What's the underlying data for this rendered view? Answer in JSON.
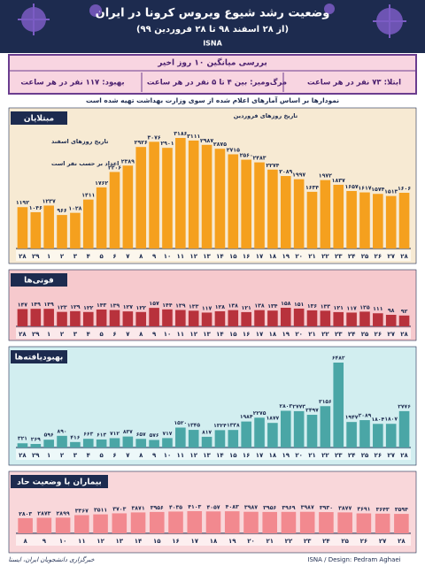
{
  "header": {
    "title": "وضعیت رشد شیوع ویروس کرونا در ایران",
    "subtitle": "(از ۲۸ اسفند ۹۸ تا ۲۸ فروردین ۹۹)",
    "brand": "ISNA"
  },
  "summary": {
    "title": "بررسی میانگین ۱۰ روز اخیر",
    "infection": "ابتلا: ۷۳ نفر در هر ساعت",
    "death": "مرگ‌ومیر: بین ۴ تا ۵ نفر در هر ساعت",
    "recovery": "بهبود: ۱۱۷ نفر در هر ساعت"
  },
  "note": "نمودارها بر اساس آمارهای اعلام شده از سوی وزارت بهداشت تهیه شده است",
  "chart_data": [
    {
      "type": "bar",
      "title": "مبتلایان",
      "annotations": [
        "تاریخ روزهای فروردین",
        "تاریخ روزهای اسفند",
        "اعداد بر حسب نفر است"
      ],
      "color": "#f5a01e",
      "categories": [
        "۲۸",
        "۲۹",
        "۱",
        "۲",
        "۳",
        "۴",
        "۵",
        "۶",
        "۷",
        "۸",
        "۹",
        "۱۰",
        "۱۱",
        "۱۲",
        "۱۳",
        "۱۴",
        "۱۵",
        "۱۶",
        "۱۷",
        "۱۸",
        "۱۹",
        "۲۰",
        "۲۱",
        "۲۲",
        "۲۳",
        "۲۴",
        "۲۵",
        "۲۶",
        "۲۷",
        "۲۸"
      ],
      "values": [
        1192,
        1046,
        1237,
        966,
        1028,
        1411,
        1762,
        2206,
        2389,
        2926,
        3076,
        2901,
        3186,
        3111,
        2987,
        2875,
        2715,
        2560,
        2483,
        2274,
        2089,
        1997,
        1634,
        1972,
        1837,
        1657,
        1617,
        1574,
        1513,
        1606
      ],
      "value_labels": [
        "۱۱۹۲",
        "۱۰۴۶",
        "۱۲۳۷",
        "۹۶۶",
        "۱۰۲۸",
        "۱۴۱۱",
        "۱۷۶۲",
        "۲۲۰۶",
        "۲۳۸۹",
        "۲۹۲۶",
        "۳۰۷۶",
        "۲۹۰۱",
        "۳۱۸۶",
        "۳۱۱۱",
        "۲۹۸۷",
        "۲۸۷۵",
        "۲۷۱۵",
        "۲۵۶۰",
        "۲۴۸۳",
        "۲۲۷۴",
        "۲۰۸۹",
        "۱۹۹۷",
        "۱۶۳۴",
        "۱۹۷۲",
        "۱۸۳۷",
        "۱۶۵۷",
        "۱۶۱۷",
        "۱۵۷۴",
        "۱۵۱۳",
        "۱۶۰۶"
      ]
    },
    {
      "type": "bar",
      "title": "فوتی‌ها",
      "color": "#b8323c",
      "categories": [
        "۲۸",
        "۲۹",
        "۱",
        "۲",
        "۳",
        "۴",
        "۵",
        "۶",
        "۷",
        "۸",
        "۹",
        "۱۰",
        "۱۱",
        "۱۲",
        "۱۳",
        "۱۴",
        "۱۵",
        "۱۶",
        "۱۷",
        "۱۸",
        "۱۹",
        "۲۰",
        "۲۱",
        "۲۲",
        "۲۳",
        "۲۴",
        "۲۵",
        "۲۶",
        "۲۷",
        "۲۸"
      ],
      "values": [
        147,
        149,
        149,
        123,
        129,
        122,
        143,
        139,
        127,
        122,
        157,
        144,
        139,
        133,
        117,
        128,
        138,
        121,
        138,
        134,
        158,
        151,
        136,
        133,
        121,
        117,
        125,
        111,
        98,
        92
      ],
      "value_labels": [
        "۱۴۷",
        "۱۴۹",
        "۱۴۹",
        "۱۲۳",
        "۱۲۹",
        "۱۲۲",
        "۱۴۳",
        "۱۳۹",
        "۱۲۷",
        "۱۲۲",
        "۱۵۷",
        "۱۴۴",
        "۱۳۹",
        "۱۳۳",
        "۱۱۷",
        "۱۲۸",
        "۱۳۸",
        "۱۲۱",
        "۱۳۸",
        "۱۳۴",
        "۱۵۸",
        "۱۵۱",
        "۱۳۶",
        "۱۳۳",
        "۱۲۱",
        "۱۱۷",
        "۱۲۵",
        "۱۱۱",
        "۹۸",
        "۹۲"
      ]
    },
    {
      "type": "bar",
      "title": "بهبودیافته‌ها",
      "color": "#4aa6a6",
      "categories": [
        "۲۸",
        "۲۹",
        "۱",
        "۲",
        "۳",
        "۴",
        "۵",
        "۶",
        "۷",
        "۸",
        "۹",
        "۱۰",
        "۱۱",
        "۱۲",
        "۱۳",
        "۱۴",
        "۱۵",
        "۱۶",
        "۱۷",
        "۱۸",
        "۱۹",
        "۲۰",
        "۲۱",
        "۲۲",
        "۲۳",
        "۲۴",
        "۲۵",
        "۲۶",
        "۲۷",
        "۲۸"
      ],
      "values": [
        321,
        269,
        596,
        890,
        416,
        663,
        613,
        712,
        837,
        657,
        576,
        717,
        1520,
        1345,
        817,
        1324,
        1338,
        1984,
        2275,
        1877,
        2803,
        2773,
        2497,
        3156,
        6482,
        1947,
        2089,
        1804,
        1807,
        2776
      ],
      "value_labels": [
        "۳۲۱",
        "۲۶۹",
        "۵۹۶",
        "۸۹۰",
        "۴۱۶",
        "۶۶۳",
        "۶۱۳",
        "۷۱۲",
        "۸۳۷",
        "۶۵۷",
        "۵۷۶",
        "۷۱۷",
        "۱۵۲۰",
        "۱۳۴۵",
        "۸۱۷",
        "۱۳۲۴",
        "۱۳۳۸",
        "۱۹۸۴",
        "۲۲۷۵",
        "۱۸۷۷",
        "۲۸۰۳",
        "۲۷۷۳",
        "۲۴۹۷",
        "۳۱۵۶",
        "۶۴۸۲",
        "۱۹۴۷",
        "۲۰۸۹",
        "۱۸۰۴",
        "۱۸۰۷",
        "۲۷۷۶"
      ]
    },
    {
      "type": "bar",
      "title": "بیماران با وضعیت حاد",
      "color": "#f2898f",
      "categories": [
        "۸",
        "۹",
        "۱۰",
        "۱۱",
        "۱۲",
        "۱۳",
        "۱۴",
        "۱۵",
        "۱۶",
        "۱۷",
        "۱۸",
        "۱۹",
        "۲۰",
        "۲۱",
        "۲۲",
        "۲۳",
        "۲۴",
        "۲۵",
        "۲۶",
        "۲۷",
        "۲۸"
      ],
      "values": [
        2803,
        2873,
        2899,
        3367,
        3511,
        3703,
        3871,
        3956,
        4035,
        4103,
        4057,
        4083,
        3987,
        3956,
        3969,
        3987,
        3930,
        3877,
        3691,
        3643,
        3594
      ],
      "value_labels": [
        "۲۸۰۳",
        "۲۸۷۳",
        "۲۸۹۹",
        "۳۳۶۷",
        "۳۵۱۱",
        "۳۷۰۳",
        "۳۸۷۱",
        "۳۹۵۶",
        "۴۰۳۵",
        "۴۱۰۳",
        "۴۰۵۷",
        "۴۰۸۳",
        "۳۹۸۷",
        "۳۹۵۶",
        "۳۹۶۹",
        "۳۹۸۷",
        "۳۹۳۰",
        "۳۸۷۷",
        "۳۶۹۱",
        "۳۶۴۳",
        "۳۵۹۴"
      ]
    }
  ],
  "footer": {
    "credit": "ISNA / Design: Pedram Aghaei",
    "signature": "خبرگزاری دانشجویان ایران، ایسنا"
  }
}
